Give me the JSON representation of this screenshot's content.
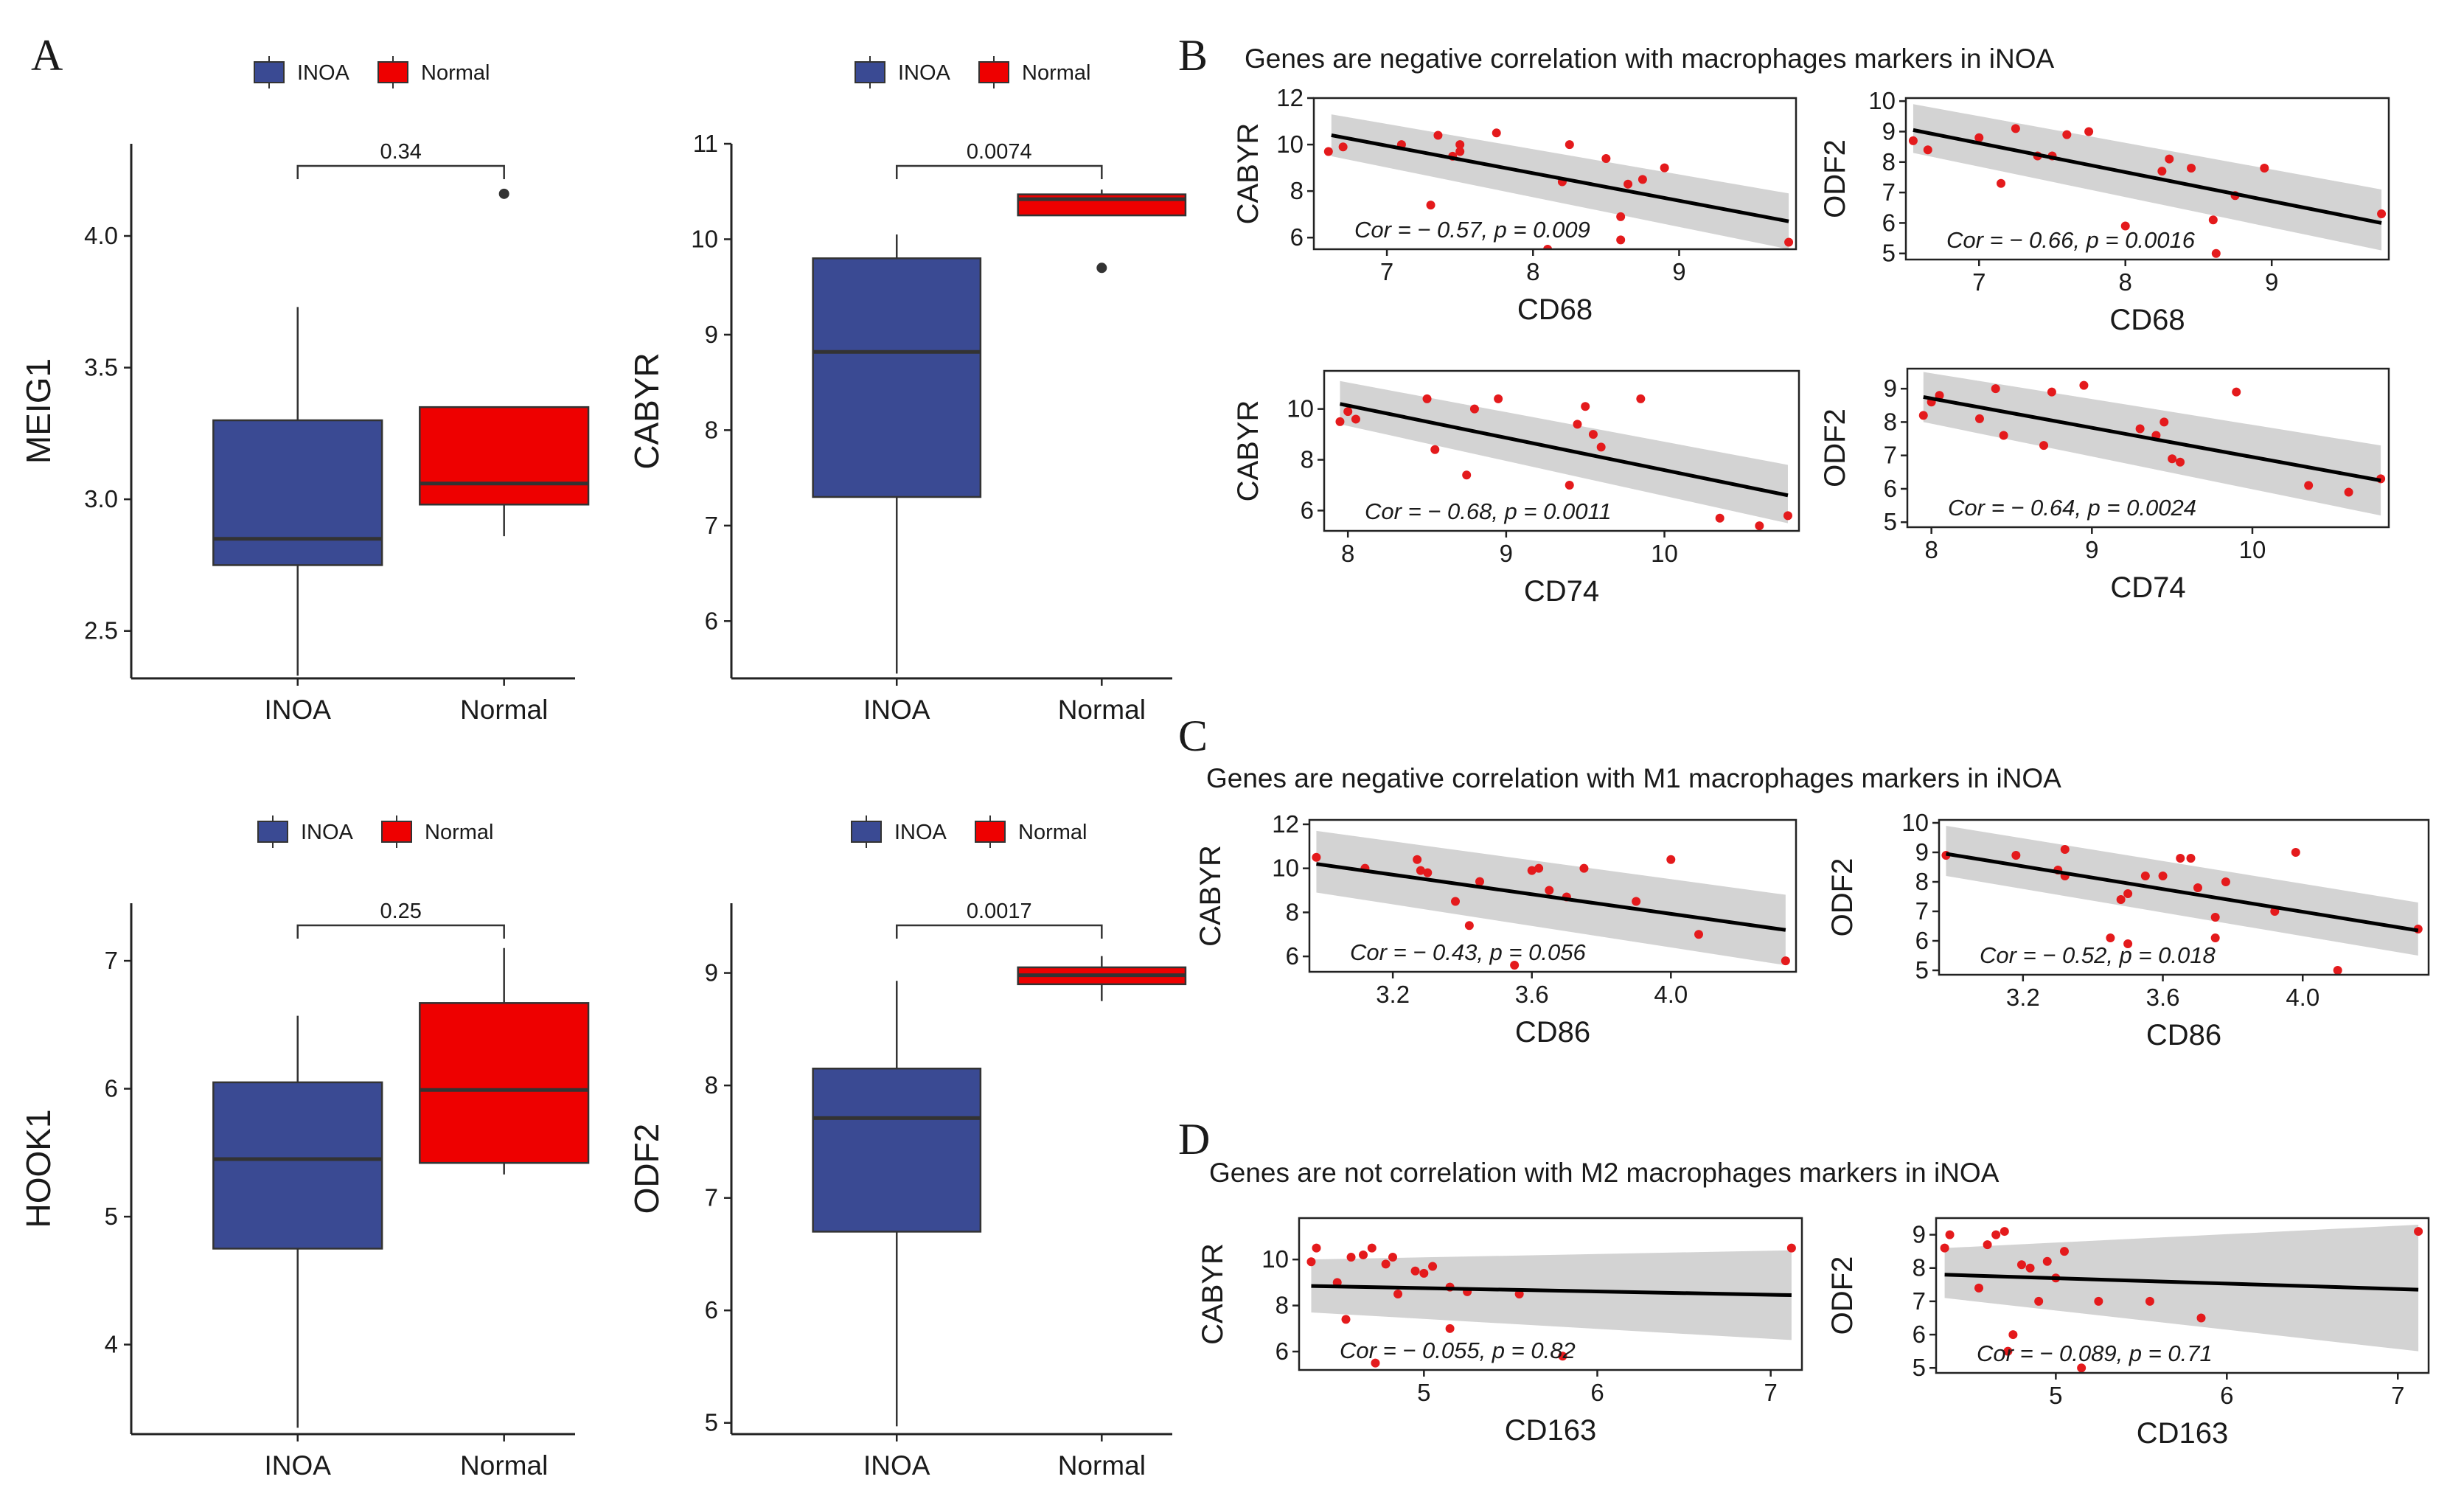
{
  "colors": {
    "inoa": "#3a4a93",
    "normal": "#ee0000",
    "point": "#e41a1c",
    "band": "#d3d3d3",
    "line": "#000000",
    "median": "#333333"
  },
  "panel_labels": {
    "a": "A",
    "b": "B",
    "c": "C",
    "d": "D"
  },
  "titles": {
    "b": "Genes are negative correlation with macrophages markers in iNOA",
    "c": "Genes are negative correlation with M1 macrophages markers in iNOA",
    "d": "Genes are not correlation with M2 macrophages markers in iNOA"
  },
  "chart_data": [
    {
      "type": "box",
      "ylabel": "MEIG1",
      "categories": [
        "INOA",
        "Normal"
      ],
      "legend": [
        "INOA",
        "Normal"
      ],
      "ylim": [
        2.32,
        4.35
      ],
      "yticks": [
        2.5,
        3.0,
        3.5,
        4.0
      ],
      "ytick_labels": [
        "2.5",
        "3.0",
        "3.5",
        "4.0"
      ],
      "pvalue": "0.34",
      "boxes": [
        {
          "min": 2.33,
          "q1": 2.75,
          "median": 2.85,
          "q3": 3.3,
          "max": 3.73,
          "outliers": []
        },
        {
          "min": 2.86,
          "q1": 2.98,
          "median": 3.06,
          "q3": 3.35,
          "max": 3.35,
          "outliers": [
            4.16
          ]
        }
      ]
    },
    {
      "type": "box",
      "ylabel": "CABYR",
      "categories": [
        "INOA",
        "Normal"
      ],
      "legend": [
        "INOA",
        "Normal"
      ],
      "ylim": [
        5.4,
        11.0
      ],
      "yticks": [
        6,
        7,
        8,
        9,
        10,
        11
      ],
      "ytick_labels": [
        "6",
        "7",
        "8",
        "9",
        "10",
        "11"
      ],
      "pvalue": "0.0074",
      "boxes": [
        {
          "min": 5.45,
          "q1": 7.3,
          "median": 8.82,
          "q3": 9.8,
          "max": 10.05,
          "outliers": []
        },
        {
          "min": 10.25,
          "q1": 10.25,
          "median": 10.42,
          "q3": 10.47,
          "max": 10.52,
          "outliers": [
            9.7
          ]
        }
      ]
    },
    {
      "type": "box",
      "ylabel": "HOOK1",
      "categories": [
        "INOA",
        "Normal"
      ],
      "legend": [
        "INOA",
        "Normal"
      ],
      "ylim": [
        3.3,
        7.45
      ],
      "yticks": [
        4,
        5,
        6,
        7
      ],
      "ytick_labels": [
        "4",
        "5",
        "6",
        "7"
      ],
      "pvalue": "0.25",
      "boxes": [
        {
          "min": 3.35,
          "q1": 4.75,
          "median": 5.45,
          "q3": 6.05,
          "max": 6.57,
          "outliers": []
        },
        {
          "min": 5.33,
          "q1": 5.42,
          "median": 5.99,
          "q3": 6.67,
          "max": 7.1,
          "outliers": []
        }
      ]
    },
    {
      "type": "box",
      "ylabel": "ODF2",
      "categories": [
        "INOA",
        "Normal"
      ],
      "legend": [
        "INOA",
        "Normal"
      ],
      "ylim": [
        4.9,
        9.62
      ],
      "yticks": [
        5,
        6,
        7,
        8,
        9
      ],
      "ytick_labels": [
        "5",
        "6",
        "7",
        "8",
        "9"
      ],
      "pvalue": "0.0017",
      "boxes": [
        {
          "min": 4.97,
          "q1": 6.7,
          "median": 7.71,
          "q3": 8.15,
          "max": 8.93,
          "outliers": []
        },
        {
          "min": 8.75,
          "q1": 8.9,
          "median": 8.98,
          "q3": 9.05,
          "max": 9.15,
          "outliers": []
        }
      ]
    },
    {
      "type": "scatter",
      "xlabel": "CD68",
      "ylabel": "CABYR",
      "xlim": [
        6.5,
        9.8
      ],
      "ylim": [
        5.5,
        12
      ],
      "xticks": [
        7,
        8,
        9
      ],
      "xtick_labels": [
        "7",
        "8",
        "9"
      ],
      "yticks": [
        6,
        8,
        10,
        12
      ],
      "ytick_labels": [
        "6",
        "8",
        "10",
        "12"
      ],
      "annotation": "Cor = − 0.57, p = 0.009",
      "fit": [
        [
          6.62,
          10.4
        ],
        [
          9.75,
          6.7
        ]
      ],
      "band_lo": [
        9.5,
        5.5
      ],
      "band_hi": [
        11.3,
        7.9
      ],
      "points": [
        [
          6.6,
          9.7
        ],
        [
          6.7,
          9.9
        ],
        [
          7.1,
          10.0
        ],
        [
          7.3,
          7.4
        ],
        [
          7.35,
          10.4
        ],
        [
          7.45,
          9.5
        ],
        [
          7.5,
          10.0
        ],
        [
          7.5,
          9.7
        ],
        [
          7.75,
          10.5
        ],
        [
          8.1,
          5.5
        ],
        [
          8.2,
          8.4
        ],
        [
          8.25,
          10.0
        ],
        [
          8.5,
          9.4
        ],
        [
          8.6,
          5.9
        ],
        [
          8.6,
          6.9
        ],
        [
          8.65,
          8.3
        ],
        [
          8.75,
          8.5
        ],
        [
          8.9,
          9.0
        ],
        [
          9.75,
          5.8
        ]
      ]
    },
    {
      "type": "scatter",
      "xlabel": "CD68",
      "ylabel": "ODF2",
      "xlim": [
        6.5,
        9.8
      ],
      "ylim": [
        4.8,
        10.1
      ],
      "xticks": [
        7,
        8,
        9
      ],
      "xtick_labels": [
        "7",
        "8",
        "9"
      ],
      "yticks": [
        5,
        6,
        7,
        8,
        9,
        10
      ],
      "ytick_labels": [
        "5",
        "6",
        "7",
        "8",
        "9",
        "10"
      ],
      "annotation": "Cor = − 0.66, p = 0.0016",
      "fit": [
        [
          6.55,
          9.05
        ],
        [
          9.75,
          6.0
        ]
      ],
      "band_lo": [
        8.3,
        5.1
      ],
      "band_hi": [
        9.9,
        7.1
      ],
      "points": [
        [
          6.55,
          8.7
        ],
        [
          6.65,
          8.4
        ],
        [
          7.0,
          8.8
        ],
        [
          7.15,
          7.3
        ],
        [
          7.25,
          9.1
        ],
        [
          7.4,
          8.2
        ],
        [
          7.5,
          8.2
        ],
        [
          7.6,
          8.9
        ],
        [
          7.75,
          9.0
        ],
        [
          8.0,
          5.9
        ],
        [
          8.25,
          7.7
        ],
        [
          8.3,
          8.1
        ],
        [
          8.45,
          7.8
        ],
        [
          8.6,
          6.1
        ],
        [
          8.62,
          5.0
        ],
        [
          8.75,
          6.9
        ],
        [
          8.95,
          7.8
        ],
        [
          9.75,
          6.3
        ]
      ]
    },
    {
      "type": "scatter",
      "xlabel": "CD74",
      "ylabel": "CABYR",
      "xlim": [
        7.85,
        10.85
      ],
      "ylim": [
        5.2,
        11.5
      ],
      "xticks": [
        8,
        9,
        10
      ],
      "xtick_labels": [
        "8",
        "9",
        "10"
      ],
      "yticks": [
        6,
        8,
        10
      ],
      "ytick_labels": [
        "6",
        "8",
        "10"
      ],
      "annotation": "Cor = − 0.68, p = 0.0011",
      "fit": [
        [
          7.95,
          10.2
        ],
        [
          10.78,
          6.6
        ]
      ],
      "band_lo": [
        9.4,
        5.5
      ],
      "band_hi": [
        11.1,
        7.8
      ],
      "points": [
        [
          7.95,
          9.5
        ],
        [
          8.0,
          9.9
        ],
        [
          8.05,
          9.6
        ],
        [
          8.5,
          10.4
        ],
        [
          8.55,
          8.4
        ],
        [
          8.75,
          7.4
        ],
        [
          8.8,
          10.0
        ],
        [
          8.95,
          10.4
        ],
        [
          9.4,
          7.0
        ],
        [
          9.45,
          9.4
        ],
        [
          9.5,
          10.1
        ],
        [
          9.55,
          9.0
        ],
        [
          9.6,
          8.5
        ],
        [
          9.85,
          10.4
        ],
        [
          10.35,
          5.7
        ],
        [
          10.6,
          5.4
        ],
        [
          10.78,
          5.8
        ]
      ]
    },
    {
      "type": "scatter",
      "xlabel": "CD74",
      "ylabel": "ODF2",
      "xlim": [
        7.85,
        10.85
      ],
      "ylim": [
        4.85,
        9.6
      ],
      "xticks": [
        8,
        9,
        10
      ],
      "xtick_labels": [
        "8",
        "9",
        "10"
      ],
      "yticks": [
        5,
        6,
        7,
        8,
        9
      ],
      "ytick_labels": [
        "5",
        "6",
        "7",
        "8",
        "9"
      ],
      "annotation": "Cor = − 0.64, p = 0.0024",
      "fit": [
        [
          7.95,
          8.75
        ],
        [
          10.8,
          6.25
        ]
      ],
      "band_lo": [
        8.0,
        5.2
      ],
      "band_hi": [
        9.5,
        7.3
      ],
      "points": [
        [
          7.95,
          8.2
        ],
        [
          8.0,
          8.6
        ],
        [
          8.05,
          8.8
        ],
        [
          8.3,
          8.1
        ],
        [
          8.4,
          9.0
        ],
        [
          8.45,
          7.6
        ],
        [
          8.7,
          7.3
        ],
        [
          8.75,
          8.9
        ],
        [
          8.95,
          9.1
        ],
        [
          9.3,
          7.8
        ],
        [
          9.4,
          7.6
        ],
        [
          9.45,
          8.0
        ],
        [
          9.5,
          6.9
        ],
        [
          9.55,
          6.8
        ],
        [
          9.9,
          8.9
        ],
        [
          10.35,
          6.1
        ],
        [
          10.6,
          5.9
        ],
        [
          10.8,
          6.3
        ]
      ]
    },
    {
      "type": "scatter",
      "xlabel": "CD86",
      "ylabel": "CABYR",
      "xlim": [
        2.96,
        4.36
      ],
      "ylim": [
        5.3,
        12.2
      ],
      "xticks": [
        3.2,
        3.6,
        4.0
      ],
      "xtick_labels": [
        "3.2",
        "3.6",
        "4.0"
      ],
      "yticks": [
        6,
        8,
        10,
        12
      ],
      "ytick_labels": [
        "6",
        "8",
        "10",
        "12"
      ],
      "annotation": "Cor = − 0.43, p = 0.056",
      "fit": [
        [
          2.98,
          10.2
        ],
        [
          4.33,
          7.2
        ]
      ],
      "band_lo": [
        8.9,
        5.6
      ],
      "band_hi": [
        11.7,
        8.8
      ],
      "points": [
        [
          2.98,
          10.5
        ],
        [
          3.12,
          10.0
        ],
        [
          3.27,
          10.4
        ],
        [
          3.28,
          9.9
        ],
        [
          3.3,
          9.8
        ],
        [
          3.38,
          8.5
        ],
        [
          3.42,
          7.4
        ],
        [
          3.45,
          9.4
        ],
        [
          3.6,
          9.9
        ],
        [
          3.62,
          10.0
        ],
        [
          3.65,
          9.0
        ],
        [
          3.7,
          8.7
        ],
        [
          3.75,
          10.0
        ],
        [
          3.9,
          8.5
        ],
        [
          4.0,
          10.4
        ],
        [
          4.08,
          7.0
        ],
        [
          4.33,
          5.8
        ],
        [
          3.55,
          5.6
        ]
      ]
    },
    {
      "type": "scatter",
      "xlabel": "CD86",
      "ylabel": "ODF2",
      "xlim": [
        2.96,
        4.36
      ],
      "ylim": [
        4.85,
        10.1
      ],
      "xticks": [
        3.2,
        3.6,
        4.0
      ],
      "xtick_labels": [
        "3.2",
        "3.6",
        "4.0"
      ],
      "yticks": [
        5,
        6,
        7,
        8,
        9,
        10
      ],
      "ytick_labels": [
        "5",
        "6",
        "7",
        "8",
        "9",
        "10"
      ],
      "annotation": "Cor = − 0.52, p = 0.018",
      "fit": [
        [
          2.98,
          8.95
        ],
        [
          4.33,
          6.35
        ]
      ],
      "band_lo": [
        8.2,
        5.5
      ],
      "band_hi": [
        9.9,
        7.3
      ],
      "points": [
        [
          2.98,
          8.9
        ],
        [
          3.18,
          8.9
        ],
        [
          3.3,
          8.4
        ],
        [
          3.32,
          8.2
        ],
        [
          3.32,
          9.1
        ],
        [
          3.45,
          6.1
        ],
        [
          3.48,
          7.4
        ],
        [
          3.5,
          7.6
        ],
        [
          3.55,
          8.2
        ],
        [
          3.6,
          8.2
        ],
        [
          3.65,
          8.8
        ],
        [
          3.68,
          8.8
        ],
        [
          3.7,
          7.8
        ],
        [
          3.75,
          6.1
        ],
        [
          3.75,
          6.8
        ],
        [
          3.78,
          8.0
        ],
        [
          3.92,
          7.0
        ],
        [
          3.98,
          9.0
        ],
        [
          4.1,
          5.0
        ],
        [
          4.33,
          6.4
        ],
        [
          3.5,
          5.9
        ]
      ]
    },
    {
      "type": "scatter",
      "xlabel": "CD163",
      "ylabel": "CABYR",
      "xlim": [
        4.28,
        7.18
      ],
      "ylim": [
        5.2,
        11.8
      ],
      "xticks": [
        5,
        6,
        7
      ],
      "xtick_labels": [
        "5",
        "6",
        "7"
      ],
      "yticks": [
        6,
        8,
        10
      ],
      "ytick_labels": [
        "6",
        "8",
        "10"
      ],
      "annotation": "Cor = − 0.055, p = 0.82",
      "fit": [
        [
          4.35,
          8.85
        ],
        [
          7.12,
          8.45
        ]
      ],
      "band_lo": [
        7.7,
        6.5
      ],
      "band_hi": [
        10.0,
        10.4
      ],
      "points": [
        [
          4.35,
          9.9
        ],
        [
          4.38,
          10.5
        ],
        [
          4.5,
          9.0
        ],
        [
          4.55,
          7.4
        ],
        [
          4.58,
          10.1
        ],
        [
          4.65,
          10.2
        ],
        [
          4.7,
          10.5
        ],
        [
          4.72,
          5.5
        ],
        [
          4.78,
          9.8
        ],
        [
          4.82,
          10.1
        ],
        [
          4.85,
          8.5
        ],
        [
          4.95,
          9.5
        ],
        [
          5.0,
          9.4
        ],
        [
          5.05,
          9.7
        ],
        [
          5.15,
          8.8
        ],
        [
          5.15,
          7.0
        ],
        [
          5.25,
          8.6
        ],
        [
          5.55,
          8.5
        ],
        [
          5.8,
          5.8
        ],
        [
          7.12,
          10.5
        ]
      ]
    },
    {
      "type": "scatter",
      "xlabel": "CD163",
      "ylabel": "ODF2",
      "xlim": [
        4.3,
        7.18
      ],
      "ylim": [
        4.85,
        9.5
      ],
      "xticks": [
        5,
        6,
        7
      ],
      "xtick_labels": [
        "5",
        "6",
        "7"
      ],
      "yticks": [
        5,
        6,
        7,
        8,
        9
      ],
      "ytick_labels": [
        "5",
        "6",
        "7",
        "8",
        "9"
      ],
      "annotation": "Cor = − 0.089, p = 0.71",
      "fit": [
        [
          4.35,
          7.8
        ],
        [
          7.12,
          7.35
        ]
      ],
      "band_lo": [
        7.1,
        5.5
      ],
      "band_hi": [
        8.6,
        9.3
      ],
      "points": [
        [
          4.35,
          8.6
        ],
        [
          4.38,
          9.0
        ],
        [
          4.55,
          7.4
        ],
        [
          4.6,
          8.7
        ],
        [
          4.65,
          9.0
        ],
        [
          4.7,
          9.1
        ],
        [
          4.72,
          5.5
        ],
        [
          4.75,
          6.0
        ],
        [
          4.8,
          8.1
        ],
        [
          4.85,
          8.0
        ],
        [
          4.9,
          7.0
        ],
        [
          4.95,
          8.2
        ],
        [
          5.0,
          7.7
        ],
        [
          5.05,
          8.5
        ],
        [
          5.15,
          5.0
        ],
        [
          5.25,
          7.0
        ],
        [
          5.55,
          7.0
        ],
        [
          5.85,
          6.5
        ],
        [
          7.12,
          9.1
        ]
      ]
    }
  ]
}
